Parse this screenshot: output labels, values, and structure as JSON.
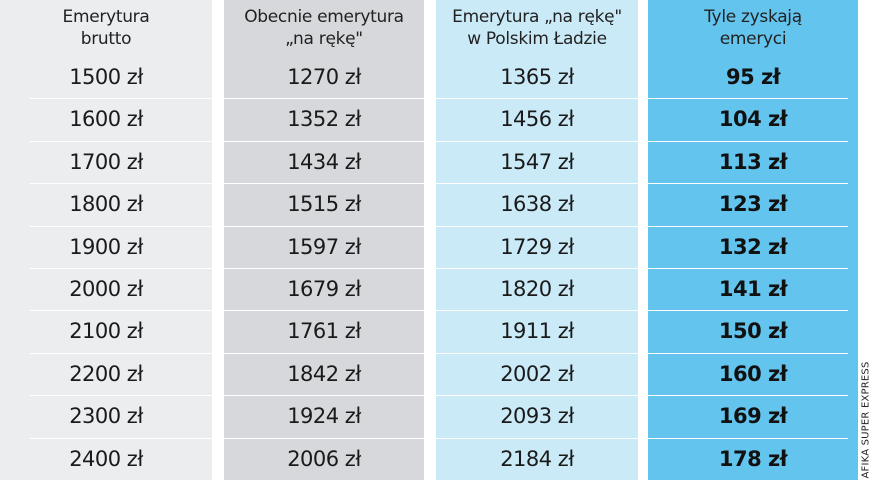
{
  "headers": [
    [
      "Emerytura",
      "brutto"
    ],
    [
      "Obecnie emerytura",
      "„na rękę\""
    ],
    [
      "Emerytura „na rękę\"",
      "w Polskim Ładzie"
    ],
    [
      "Tyle zyskają",
      "emeryci"
    ]
  ],
  "rows": [
    [
      "1500 zł",
      "1270 zł",
      "1365 zł",
      "95 zł"
    ],
    [
      "1600 zł",
      "1352 zł",
      "1456 zł",
      "104 zł"
    ],
    [
      "1700 zł",
      "1434 zł",
      "1547 zł",
      "113 zł"
    ],
    [
      "1800 zł",
      "1515 zł",
      "1638 zł",
      "123 zł"
    ],
    [
      "1900 zł",
      "1597 zł",
      "1729 zł",
      "132 zł"
    ],
    [
      "2000 zł",
      "1679 zł",
      "1820 zł",
      "141 zł"
    ],
    [
      "2100 zł",
      "1761 zł",
      "1911 zł",
      "150 zł"
    ],
    [
      "2200 zł",
      "1842 zł",
      "2002 zł",
      "160 zł"
    ],
    [
      "2300 zł",
      "1924 zł",
      "2093 zł",
      "169 zł"
    ],
    [
      "2400 zł",
      "2006 zł",
      "2184 zł",
      "178 zł"
    ]
  ],
  "credit": "AFIKA SUPER EXPRESS",
  "colors": {
    "col1": "#ecedef",
    "col2": "#d6d8db",
    "col3": "#cbeaf8",
    "col4": "#63c4ee"
  }
}
